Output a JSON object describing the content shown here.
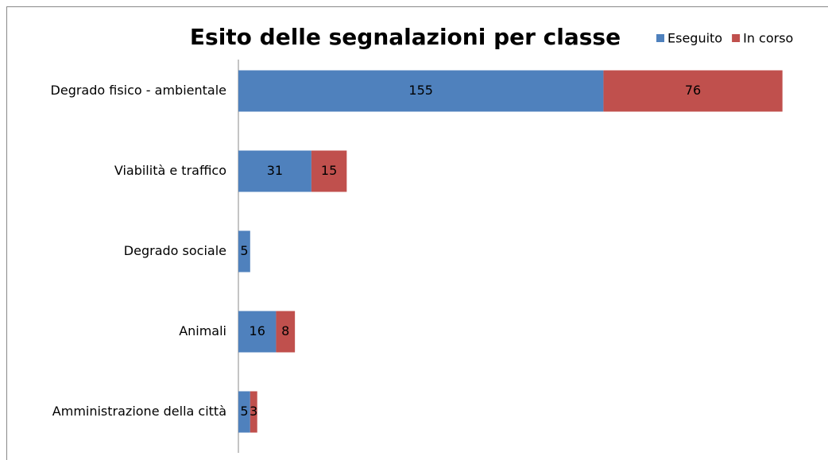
{
  "chart_data": {
    "type": "stacked-bar-horizontal",
    "title": "Esito delle segnalazioni per classe",
    "categories": [
      "Degrado fisico - ambientale",
      "Viabilità e traffico",
      "Degrado sociale",
      "Animali",
      "Amministrazione della città"
    ],
    "series": [
      {
        "name": "Eseguito",
        "color": "#4f81bd",
        "values": [
          155,
          31,
          5,
          16,
          5
        ]
      },
      {
        "name": "In corso",
        "color": "#c0504d",
        "values": [
          76,
          15,
          null,
          8,
          3
        ]
      }
    ],
    "xlim": [
      0,
      250
    ],
    "legend": "top-right"
  }
}
